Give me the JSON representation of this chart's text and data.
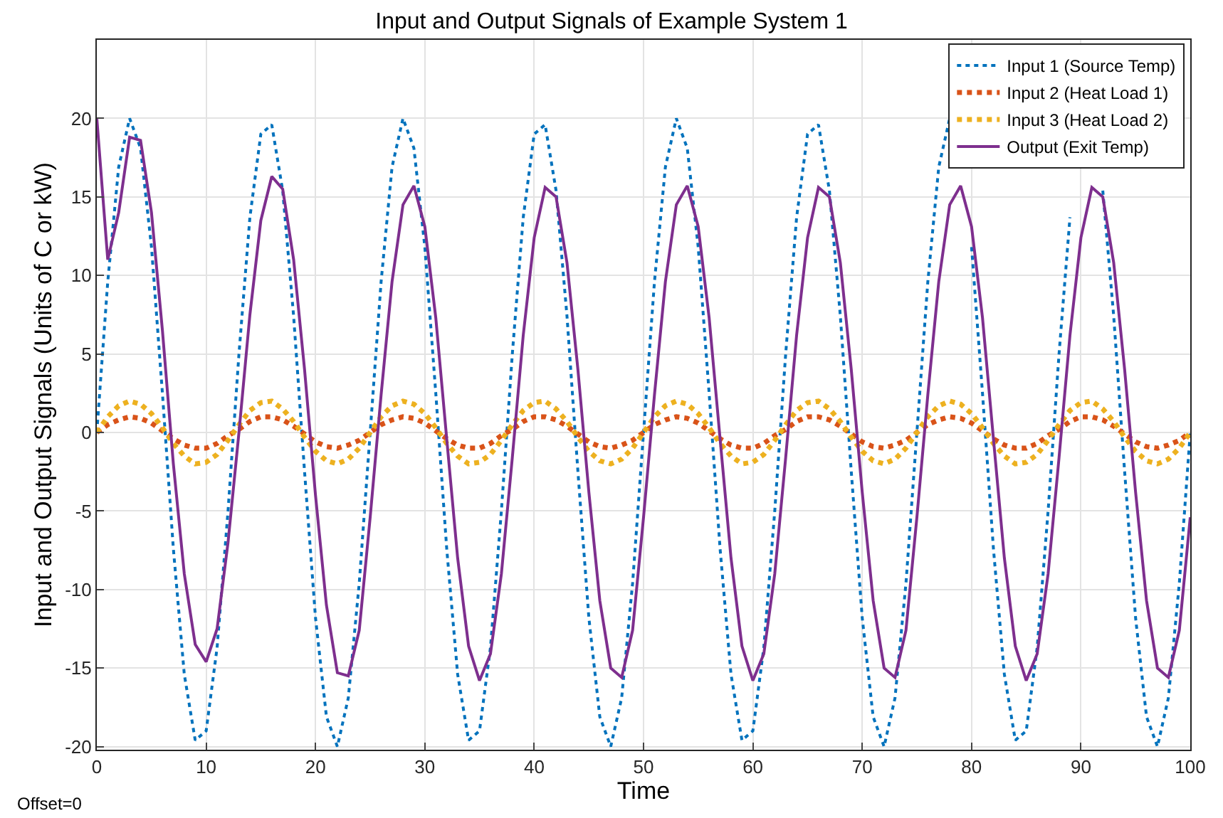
{
  "chart_data": {
    "type": "line",
    "title": "Input and Output Signals of Example System 1",
    "xlabel": "Time",
    "ylabel": "Input and Output Signals (Units of C or kW)",
    "x": [
      0,
      1,
      2,
      3,
      4,
      5,
      6,
      7,
      8,
      9,
      10,
      11,
      12,
      13,
      14,
      15,
      16,
      17,
      18,
      19,
      20,
      21,
      22,
      23,
      24,
      25,
      26,
      27,
      28,
      29,
      30,
      31,
      32,
      33,
      34,
      35,
      36,
      37,
      38,
      39,
      40,
      41,
      42,
      43,
      44,
      45,
      46,
      47,
      48,
      49,
      50,
      51,
      52,
      53,
      54,
      55,
      56,
      57,
      58,
      59,
      60,
      61,
      62,
      63,
      64,
      65,
      66,
      67,
      68,
      69,
      70,
      71,
      72,
      73,
      74,
      75,
      76,
      77,
      78,
      79,
      80,
      81,
      82,
      83,
      84,
      85,
      86,
      87,
      88,
      89,
      90,
      91,
      92,
      93,
      94,
      95,
      96,
      97,
      98,
      99,
      100
    ],
    "series": [
      {
        "name": "Input 1 (Source Temp)",
        "color": "#0072bd",
        "line_style": "dotted",
        "values": [
          0,
          9.6,
          16.9,
          20.0,
          18.1,
          11.8,
          2.5,
          -7.4,
          -15.4,
          -19.6,
          -19.0,
          -13.7,
          -5.0,
          5.0,
          13.7,
          19.0,
          19.6,
          15.4,
          7.4,
          -2.5,
          -11.8,
          -18.1,
          -20.0,
          -16.9,
          -9.6,
          0,
          9.6,
          16.9,
          20.0,
          18.1,
          11.8,
          2.5,
          -7.4,
          -15.4,
          -19.6,
          -19.0,
          -13.7,
          -5.0,
          5.0,
          13.7,
          19.0,
          19.6,
          15.4,
          7.4,
          -2.5,
          -11.8,
          -18.1,
          -20.0,
          -16.9,
          -9.6,
          0,
          9.6,
          16.9,
          20.0,
          18.1,
          11.8,
          2.5,
          -7.4,
          -15.4,
          -19.6,
          -19.0,
          -13.7,
          -5.0,
          5.0,
          13.7,
          19.0,
          19.6,
          15.4,
          7.4,
          -2.5,
          -11.8,
          -18.1,
          -20.0,
          -16.9,
          -9.6,
          0,
          9.6,
          16.9,
          20.0,
          null,
          11.8,
          2.5,
          -7.4,
          -15.4,
          -19.6,
          -19.0,
          -13.7,
          -5.0,
          5.0,
          13.7,
          null,
          null,
          15.4,
          7.4,
          -2.5,
          -11.8,
          -18.1,
          -20.0,
          -16.9,
          -9.6,
          0
        ]
      },
      {
        "name": "Input 2 (Heat Load 1)",
        "color": "#d95319",
        "line_style": "dotted",
        "values": [
          0,
          0.5,
          0.8,
          1.0,
          0.9,
          0.6,
          0.1,
          -0.4,
          -0.8,
          -1.0,
          -1.0,
          -0.7,
          -0.2,
          0.2,
          0.7,
          1.0,
          1.0,
          0.8,
          0.4,
          -0.1,
          -0.6,
          -0.9,
          -1.0,
          -0.8,
          -0.5,
          0,
          0.5,
          0.8,
          1.0,
          0.9,
          0.6,
          0.1,
          -0.4,
          -0.8,
          -1.0,
          -1.0,
          -0.7,
          -0.2,
          0.2,
          0.7,
          1.0,
          1.0,
          0.8,
          0.4,
          -0.1,
          -0.6,
          -0.9,
          -1.0,
          -0.8,
          -0.5,
          0,
          0.5,
          0.8,
          1.0,
          0.9,
          0.6,
          0.1,
          -0.4,
          -0.8,
          -1.0,
          -1.0,
          -0.7,
          -0.2,
          0.2,
          0.7,
          1.0,
          1.0,
          0.8,
          0.4,
          -0.1,
          -0.6,
          -0.9,
          -1.0,
          -0.8,
          -0.5,
          0,
          0.5,
          0.8,
          1.0,
          0.9,
          0.6,
          0.1,
          -0.4,
          -0.8,
          -1.0,
          -1.0,
          -0.7,
          -0.2,
          0.2,
          0.7,
          1.0,
          1.0,
          0.8,
          0.4,
          -0.1,
          -0.6,
          -0.9,
          -1.0,
          -0.8,
          -0.5,
          0
        ]
      },
      {
        "name": "Input 3 (Heat Load 2)",
        "color": "#edb120",
        "line_style": "dotted",
        "values": [
          0,
          1.0,
          1.7,
          2.0,
          1.8,
          1.2,
          0.3,
          -0.7,
          -1.5,
          -2.0,
          -1.9,
          -1.4,
          -0.5,
          0.5,
          1.4,
          1.9,
          2.0,
          1.5,
          0.7,
          -0.3,
          -1.2,
          -1.8,
          -2.0,
          -1.7,
          -1.0,
          0,
          1.0,
          1.7,
          2.0,
          1.8,
          1.2,
          0.3,
          -0.7,
          -1.5,
          -2.0,
          -1.9,
          -1.4,
          -0.5,
          0.5,
          1.4,
          1.9,
          2.0,
          1.5,
          0.7,
          -0.3,
          -1.2,
          -1.8,
          -2.0,
          -1.7,
          -1.0,
          0,
          1.0,
          1.7,
          2.0,
          1.8,
          1.2,
          0.3,
          -0.7,
          -1.5,
          -2.0,
          -1.9,
          -1.4,
          -0.5,
          0.5,
          1.4,
          1.9,
          2.0,
          1.5,
          0.7,
          -0.3,
          -1.2,
          -1.8,
          -2.0,
          -1.7,
          -1.0,
          0,
          1.0,
          1.7,
          2.0,
          1.8,
          1.2,
          0.3,
          -0.7,
          -1.5,
          -2.0,
          -1.9,
          -1.4,
          -0.5,
          0.5,
          1.4,
          1.9,
          2.0,
          1.5,
          0.7,
          -0.3,
          -1.2,
          -1.8,
          -2.0,
          -1.7,
          -1.0,
          0
        ]
      },
      {
        "name": "Output (Exit Temp)",
        "color": "#7e2f8e",
        "line_style": "solid",
        "values": [
          20,
          11,
          14,
          18.8,
          18.6,
          14,
          6.5,
          -2,
          -9,
          -13.5,
          -14.6,
          -12.5,
          -7,
          0,
          7.5,
          13.5,
          16.3,
          15.5,
          11,
          4,
          -4,
          -11,
          -15.3,
          -15.5,
          -12.6,
          -5.4,
          2.4,
          9.6,
          14.5,
          15.7,
          13.1,
          7.3,
          -0.4,
          -8.0,
          -13.6,
          -15.8,
          -14.1,
          -9.0,
          -1.6,
          6.2,
          12.4,
          15.6,
          15.0,
          10.8,
          4.0,
          -3.8,
          -10.7,
          -15.0,
          -15.6,
          -12.6,
          -5.4,
          2.4,
          9.6,
          14.5,
          15.7,
          13.1,
          7.3,
          -0.4,
          -8.0,
          -13.6,
          -15.8,
          -14.1,
          -9.0,
          -1.6,
          6.2,
          12.4,
          15.6,
          15.0,
          10.8,
          4.0,
          -3.8,
          -10.7,
          -15.0,
          -15.6,
          -12.6,
          -5.4,
          2.4,
          9.6,
          14.5,
          15.7,
          13.1,
          7.3,
          -0.4,
          -8.0,
          -13.6,
          -15.8,
          -14.1,
          -9.0,
          -1.6,
          6.2,
          12.4,
          15.6,
          15.0,
          10.8,
          4.0,
          -3.8,
          -10.7,
          -15.0,
          -15.6,
          -12.6,
          -5.4
        ]
      }
    ],
    "xlim": [
      0,
      100
    ],
    "xticks": [
      0,
      10,
      20,
      30,
      40,
      50,
      60,
      70,
      80,
      90,
      100
    ],
    "ylim": [
      -20.2,
      25
    ],
    "yticks": [
      -20,
      -15,
      -10,
      -5,
      0,
      5,
      10,
      15,
      20
    ],
    "grid": true,
    "legend": "top right",
    "marker": "none",
    "annotations": [
      "Offset=0"
    ]
  }
}
